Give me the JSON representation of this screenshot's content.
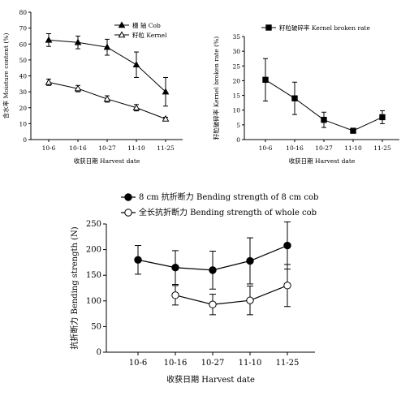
{
  "chart_data": [
    {
      "type": "line",
      "categories": [
        "10-6",
        "10-16",
        "10-27",
        "11-10",
        "11-25"
      ],
      "xlabel": "收获日期 Harvest date",
      "ylabel": "含水率 Moisture content (%)",
      "ylim": [
        0,
        80
      ],
      "yticks": [
        0,
        10,
        20,
        30,
        40,
        50,
        60,
        70,
        80
      ],
      "legend": "top-right",
      "series": [
        {
          "name": "穗 轴 Cob",
          "marker": "filled-triangle",
          "values": [
            62.5,
            61,
            58,
            47,
            30
          ],
          "errors": [
            4,
            4,
            5,
            8,
            9
          ]
        },
        {
          "name": "籽粒 Kernel",
          "marker": "open-triangle",
          "values": [
            36,
            32,
            25.5,
            20,
            13
          ],
          "errors": [
            2,
            2,
            2,
            2,
            1
          ]
        }
      ]
    },
    {
      "type": "line",
      "categories": [
        "10-6",
        "10-16",
        "10-27",
        "11-10",
        "11-25"
      ],
      "xlabel": "收获日期 Harvest date",
      "ylabel": "籽粒破碎率 Kernel broken rate (%)",
      "ylim": [
        0,
        35
      ],
      "yticks": [
        0,
        5,
        10,
        15,
        20,
        25,
        30,
        35
      ],
      "legend": "top-right",
      "series": [
        {
          "name": "籽粒破碎率 Kernel broken rate",
          "marker": "filled-square",
          "values": [
            20.3,
            14,
            6.7,
            3,
            7.6
          ],
          "errors": [
            7.2,
            5.5,
            2.6,
            0.8,
            2.2
          ]
        }
      ]
    },
    {
      "type": "line",
      "categories": [
        "10-6",
        "10-16",
        "10-27",
        "11-10",
        "11-25"
      ],
      "xlabel": "收获日期 Harvest date",
      "ylabel": "抗折断力 Bending strength (N)",
      "ylim": [
        0,
        250
      ],
      "yticks": [
        0,
        50,
        100,
        150,
        200,
        250
      ],
      "legend": "top-left",
      "series": [
        {
          "name": "8 cm 抗折断力 Bending strength of 8 cm cob",
          "marker": "filled-circle",
          "values": [
            180,
            165,
            160,
            178,
            208
          ],
          "errors": [
            28,
            33,
            37,
            45,
            46
          ]
        },
        {
          "name": "全长抗折断力 Bending strength of whole cob",
          "marker": "open-circle",
          "values": [
            null,
            111,
            93,
            101,
            130
          ],
          "errors": [
            null,
            19,
            20,
            28,
            41
          ]
        }
      ]
    }
  ]
}
